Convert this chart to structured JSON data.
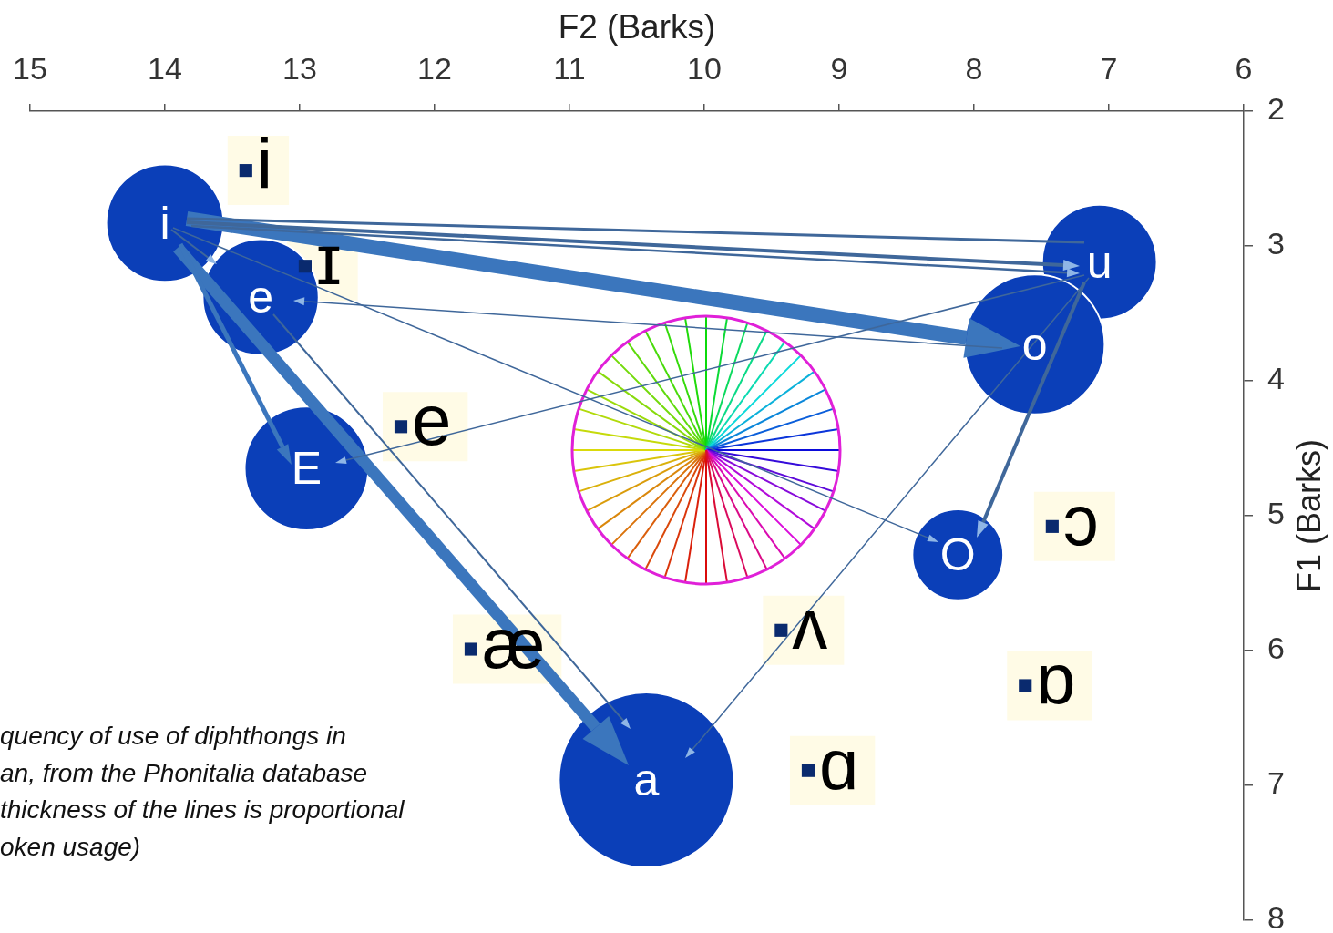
{
  "chart_data": {
    "type": "scatter",
    "xlabel": "F2 (Barks)",
    "ylabel": "F1 (Barks)",
    "xlim": [
      15,
      6
    ],
    "xticks": [
      15,
      14,
      13,
      12,
      11,
      10,
      9,
      8,
      7,
      6
    ],
    "ylim": [
      8,
      2
    ],
    "yticks": [
      2,
      3,
      4,
      5,
      6,
      7,
      8
    ],
    "grid": false,
    "annotations": [
      "quency of use of diphthongs in",
      "an, from the Phonitalia database",
      "thickness of the lines is proportional",
      "oken usage)"
    ],
    "series": [
      {
        "type": "bubble",
        "name": "i",
        "color": "#0b3fb8",
        "x": [
          14.0
        ],
        "values": [
          2.83
        ],
        "sizes": [
          0.45
        ]
      },
      {
        "type": "bubble",
        "name": "e",
        "color": "#0b3fb8",
        "x": [
          13.29
        ],
        "values": [
          3.38
        ],
        "sizes": [
          0.44
        ]
      },
      {
        "type": "bubble",
        "name": "E",
        "color": "#0b3fb8",
        "x": [
          12.95
        ],
        "values": [
          4.65
        ],
        "sizes": [
          0.5
        ]
      },
      {
        "type": "bubble",
        "name": "a",
        "color": "#0b3fb8",
        "x": [
          10.43
        ],
        "values": [
          6.96
        ],
        "sizes": [
          1
        ]
      },
      {
        "type": "bubble",
        "name": "u",
        "color": "#0b3fb8",
        "x": [
          7.07
        ],
        "values": [
          3.12
        ],
        "sizes": [
          0.43
        ]
      },
      {
        "type": "bubble",
        "name": "o",
        "color": "#0b3fb8",
        "x": [
          7.55
        ],
        "values": [
          3.73
        ],
        "sizes": [
          0.64
        ]
      },
      {
        "type": "bubble",
        "name": "O",
        "color": "#0b3fb8",
        "x": [
          8.12
        ],
        "values": [
          5.29
        ],
        "sizes": [
          0.27
        ]
      },
      {
        "name": "i",
        "color": "#0a2a6e",
        "marker": "square",
        "x": [
          13.4
        ],
        "values": [
          2.44
        ]
      },
      {
        "name": "ɪ",
        "color": "#0a2a6e",
        "marker": "square",
        "x": [
          12.96
        ],
        "values": [
          3.15
        ]
      },
      {
        "name": "e",
        "color": "#0a2a6e",
        "marker": "square",
        "x": [
          12.25
        ],
        "values": [
          4.34
        ]
      },
      {
        "name": "æ",
        "color": "#0a2a6e",
        "marker": "square",
        "x": [
          11.73
        ],
        "values": [
          5.99
        ]
      },
      {
        "name": "ʌ",
        "color": "#0a2a6e",
        "marker": "square",
        "x": [
          9.43
        ],
        "values": [
          5.85
        ]
      },
      {
        "name": "ɑ",
        "color": "#0a2a6e",
        "marker": "square",
        "x": [
          9.23
        ],
        "values": [
          6.89
        ]
      },
      {
        "name": "ɔ",
        "color": "#0a2a6e",
        "marker": "square",
        "x": [
          7.42
        ],
        "values": [
          5.08
        ]
      },
      {
        "name": "ɒ",
        "color": "#0a2a6e",
        "marker": "square",
        "x": [
          7.62
        ],
        "values": [
          6.26
        ]
      }
    ]
  }
}
